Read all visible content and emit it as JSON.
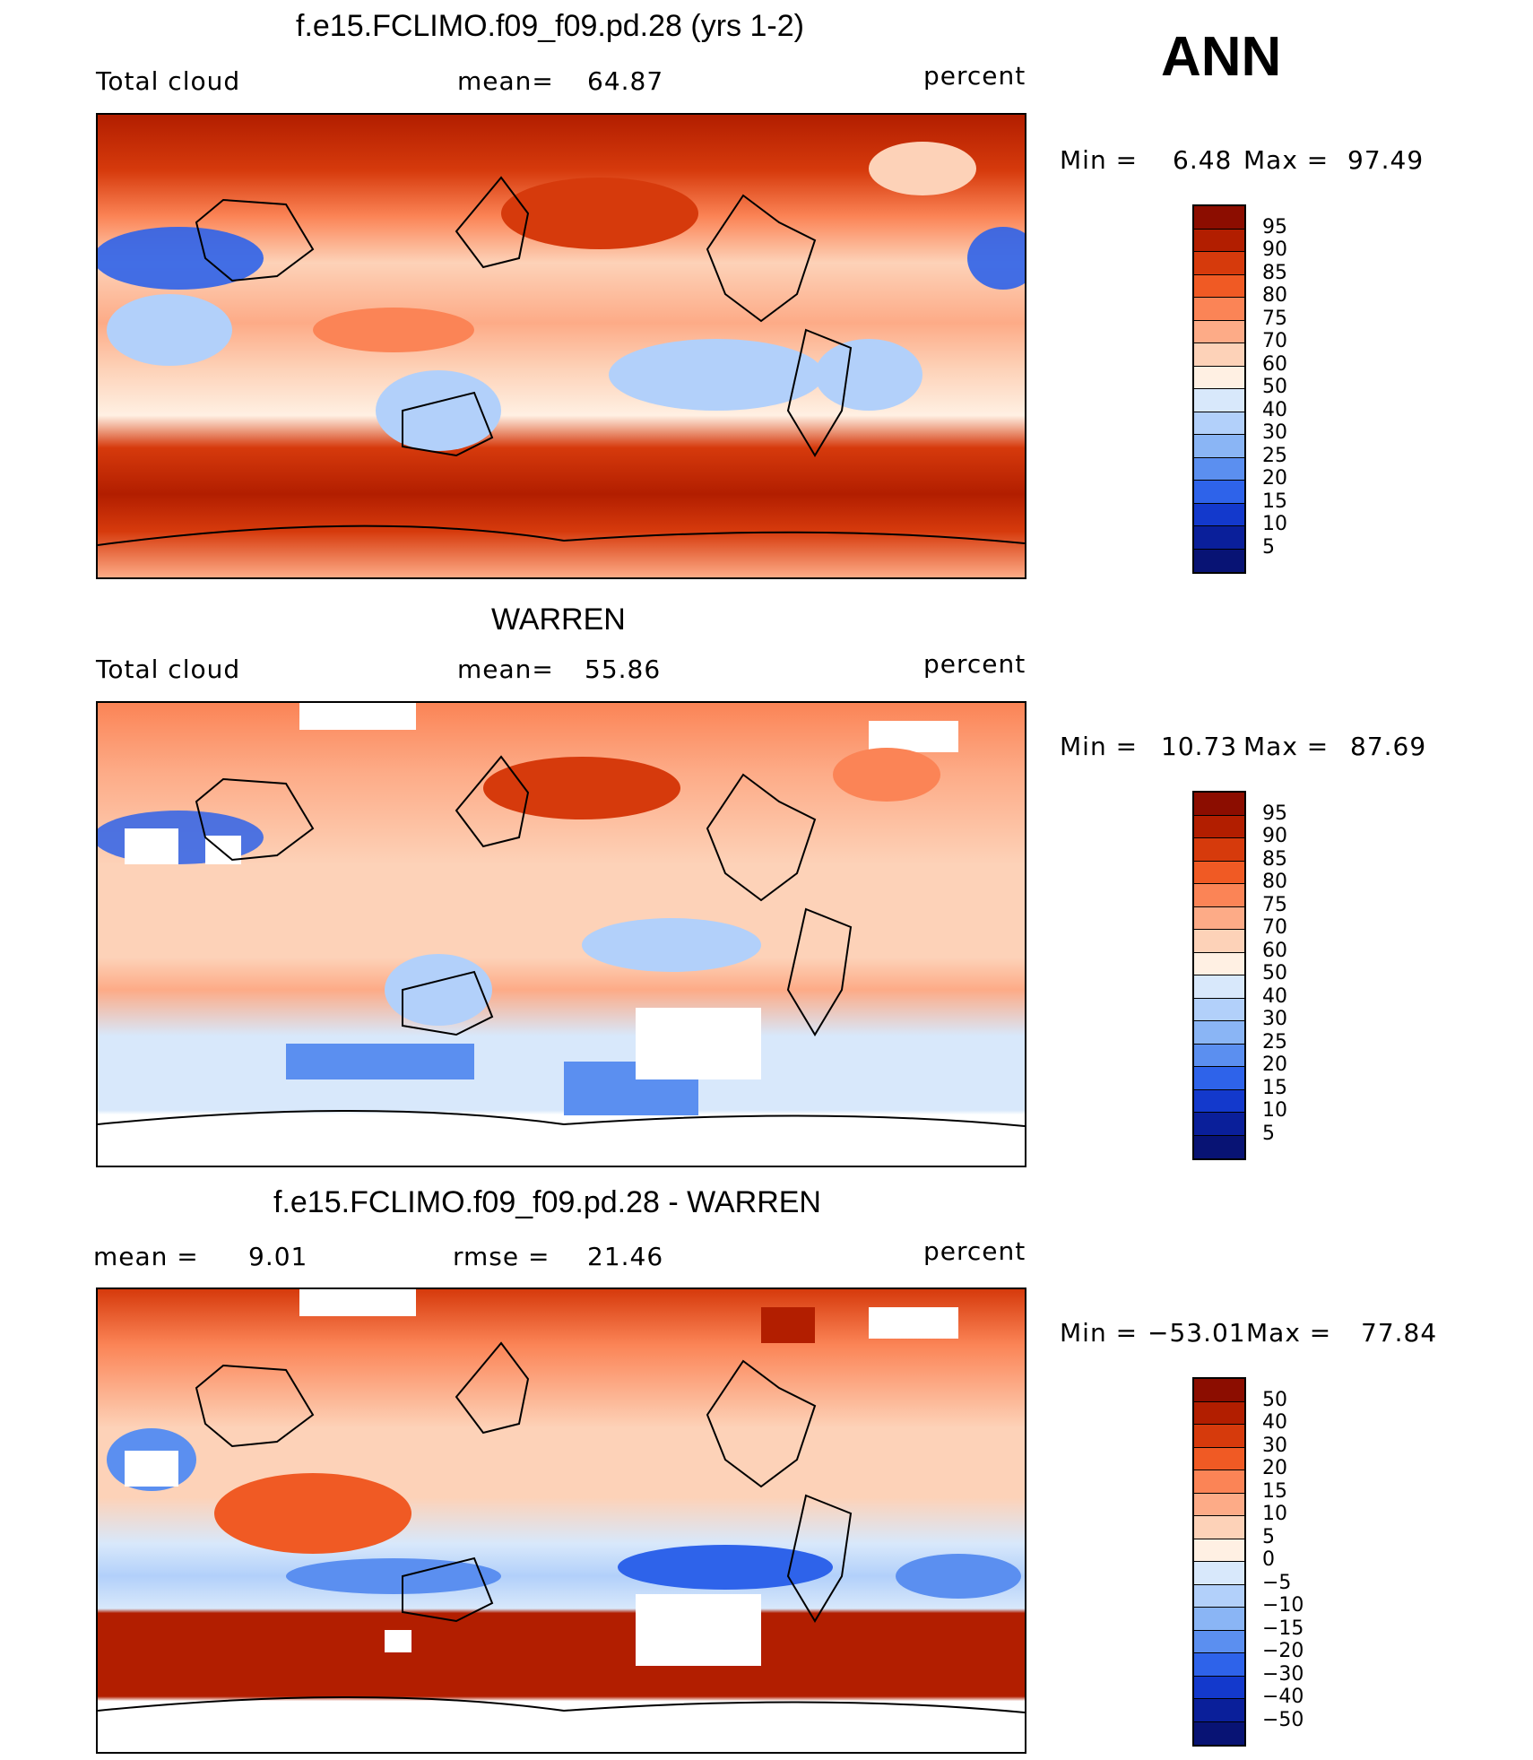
{
  "season": "ANN",
  "panels": [
    {
      "title": "f.e15.FCLIMO.f09_f09.pd.28 (yrs 1-2)",
      "left_label": "Total cloud",
      "center_label": "mean=",
      "center_value": "64.87",
      "right_label": "percent",
      "min_label": "Min =",
      "min_value": "6.48",
      "max_label": "Max =",
      "max_value": "97.49",
      "colorbar": {
        "labels": [
          "95",
          "90",
          "85",
          "80",
          "75",
          "70",
          "60",
          "50",
          "40",
          "30",
          "25",
          "20",
          "15",
          "10",
          "5"
        ],
        "colors": [
          "#8c0d00",
          "#b21e00",
          "#d63a0c",
          "#f05a24",
          "#fb8456",
          "#fdab87",
          "#fdd2b8",
          "#fff0e3",
          "#d8e8fb",
          "#b2d0fa",
          "#8ab5f5",
          "#5b8ff0",
          "#2e63ea",
          "#1339cc",
          "#0a1f9a",
          "#081374"
        ]
      }
    },
    {
      "title": "WARREN",
      "left_label": "Total cloud",
      "center_label": "mean=",
      "center_value": "55.86",
      "right_label": "percent",
      "min_label": "Min =",
      "min_value": "10.73",
      "max_label": "Max =",
      "max_value": "87.69",
      "colorbar": {
        "labels": [
          "95",
          "90",
          "85",
          "80",
          "75",
          "70",
          "60",
          "50",
          "40",
          "30",
          "25",
          "20",
          "15",
          "10",
          "5"
        ],
        "colors": [
          "#8c0d00",
          "#b21e00",
          "#d63a0c",
          "#f05a24",
          "#fb8456",
          "#fdab87",
          "#fdd2b8",
          "#fff0e3",
          "#d8e8fb",
          "#b2d0fa",
          "#8ab5f5",
          "#5b8ff0",
          "#2e63ea",
          "#1339cc",
          "#0a1f9a",
          "#081374"
        ]
      }
    },
    {
      "title": "f.e15.FCLIMO.f09_f09.pd.28 - WARREN",
      "left_label": "mean =",
      "left_value": "9.01",
      "center_label": "rmse =",
      "center_value": "21.46",
      "right_label": "percent",
      "min_label": "Min =",
      "min_value": "−53.01",
      "max_label": "Max =",
      "max_value": "77.84",
      "colorbar": {
        "labels": [
          "50",
          "40",
          "30",
          "20",
          "15",
          "10",
          "5",
          "0",
          "−5",
          "−10",
          "−15",
          "−20",
          "−30",
          "−40",
          "−50"
        ],
        "colors": [
          "#8c0d00",
          "#b21e00",
          "#d63a0c",
          "#f05a24",
          "#fb8456",
          "#fdab87",
          "#fdd2b8",
          "#fff0e3",
          "#d8e8fb",
          "#b2d0fa",
          "#8ab5f5",
          "#5b8ff0",
          "#2e63ea",
          "#1339cc",
          "#0a1f9a",
          "#081374"
        ]
      }
    }
  ]
}
